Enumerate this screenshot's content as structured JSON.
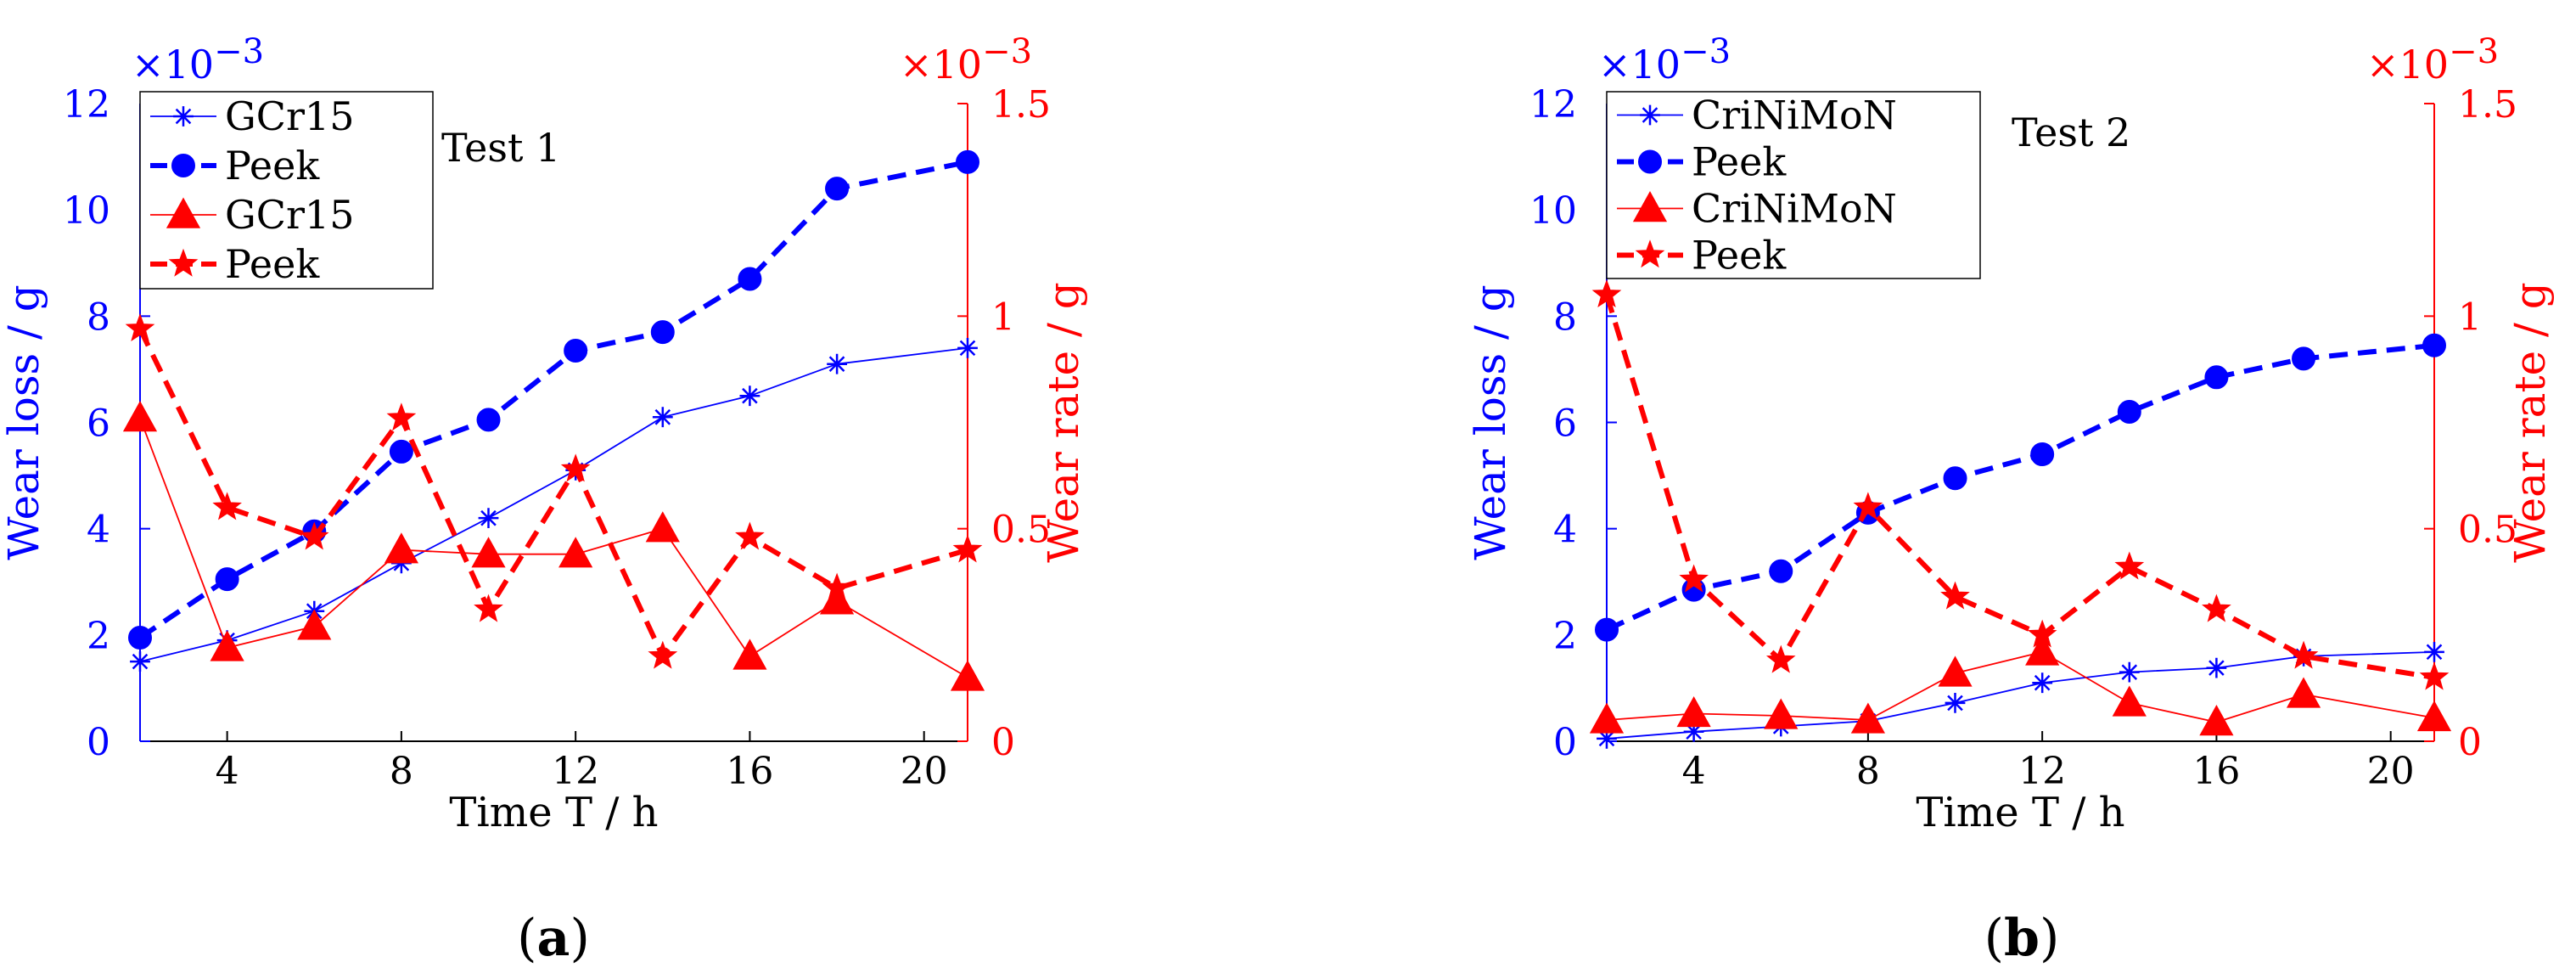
{
  "chart_data": [
    {
      "type": "line",
      "panel_label": "a",
      "annotation": "Test 1",
      "xlabel": "Time T / h",
      "ylabel_left": "Wear loss / g",
      "ylabel_right": "Wear rate / g",
      "left_multiplier": "×10",
      "left_multiplier_exp": "−3",
      "right_multiplier": "×10",
      "right_multiplier_exp": "−3",
      "xlim": [
        2,
        21
      ],
      "ylim_left": [
        0,
        12
      ],
      "ylim_right": [
        0,
        1.5
      ],
      "xticks": [
        4,
        8,
        12,
        16,
        20
      ],
      "yticks_left": [
        0,
        2,
        4,
        6,
        8,
        10,
        12
      ],
      "yticks_right": [
        0,
        0.5,
        1,
        1.5
      ],
      "legend_position": "top-left",
      "grid": false,
      "series": [
        {
          "name": "GCr15",
          "axis": "left",
          "color": "#0000ff",
          "dash": false,
          "marker": "asterisk",
          "x": [
            2,
            4,
            6,
            8,
            10,
            12,
            14,
            16,
            18,
            21
          ],
          "y": [
            1.5,
            1.9,
            2.45,
            3.35,
            4.2,
            5.1,
            6.1,
            6.5,
            7.1,
            7.4
          ]
        },
        {
          "name": "Peek",
          "axis": "left",
          "color": "#0000ff",
          "dash": true,
          "marker": "circle",
          "x": [
            2,
            4,
            6,
            8,
            10,
            12,
            14,
            16,
            18,
            21
          ],
          "y": [
            1.95,
            3.05,
            3.95,
            5.45,
            6.05,
            7.35,
            7.7,
            8.7,
            10.4,
            10.9
          ]
        },
        {
          "name": "GCr15",
          "axis": "right",
          "color": "#ff0000",
          "dash": false,
          "marker": "triangle",
          "x": [
            2,
            4,
            6,
            8,
            10,
            12,
            14,
            16,
            18,
            21
          ],
          "y": [
            0.76,
            0.22,
            0.27,
            0.45,
            0.44,
            0.44,
            0.5,
            0.2,
            0.33,
            0.15
          ]
        },
        {
          "name": "Peek",
          "axis": "right",
          "color": "#ff0000",
          "dash": true,
          "marker": "star",
          "x": [
            2,
            4,
            6,
            8,
            10,
            12,
            14,
            16,
            18,
            21
          ],
          "y": [
            0.97,
            0.55,
            0.48,
            0.76,
            0.31,
            0.64,
            0.2,
            0.48,
            0.36,
            0.45
          ]
        }
      ]
    },
    {
      "type": "line",
      "panel_label": "b",
      "annotation": "Test 2",
      "xlabel": "Time T / h",
      "ylabel_left": "Wear loss / g",
      "ylabel_right": "Wear rate / g",
      "left_multiplier": "×10",
      "left_multiplier_exp": "−3",
      "right_multiplier": "×10",
      "right_multiplier_exp": "−3",
      "xlim": [
        2,
        21
      ],
      "ylim_left": [
        0,
        12
      ],
      "ylim_right": [
        0,
        1.5
      ],
      "xticks": [
        4,
        8,
        12,
        16,
        20
      ],
      "yticks_left": [
        0,
        2,
        4,
        6,
        8,
        10,
        12
      ],
      "yticks_right": [
        0,
        0.5,
        1,
        1.5
      ],
      "legend_position": "top-left",
      "grid": false,
      "series": [
        {
          "name": "CriNiMoN",
          "axis": "left",
          "color": "#0000ff",
          "dash": false,
          "marker": "asterisk",
          "x": [
            2,
            4,
            6,
            8,
            10,
            12,
            14,
            16,
            18,
            21
          ],
          "y": [
            0.05,
            0.18,
            0.28,
            0.38,
            0.72,
            1.1,
            1.3,
            1.38,
            1.6,
            1.68
          ]
        },
        {
          "name": "Peek",
          "axis": "left",
          "color": "#0000ff",
          "dash": true,
          "marker": "circle",
          "x": [
            2,
            4,
            6,
            8,
            10,
            12,
            14,
            16,
            18,
            21
          ],
          "y": [
            2.1,
            2.85,
            3.2,
            4.3,
            4.95,
            5.4,
            6.2,
            6.85,
            7.2,
            7.45
          ]
        },
        {
          "name": "CriNiMoN",
          "axis": "right",
          "color": "#ff0000",
          "dash": false,
          "marker": "triangle",
          "x": [
            2,
            4,
            6,
            8,
            10,
            12,
            14,
            16,
            18,
            21
          ],
          "y": [
            0.05,
            0.065,
            0.06,
            0.05,
            0.16,
            0.21,
            0.09,
            0.045,
            0.11,
            0.055
          ]
        },
        {
          "name": "Peek",
          "axis": "right",
          "color": "#ff0000",
          "dash": true,
          "marker": "star",
          "x": [
            2,
            4,
            6,
            8,
            10,
            12,
            14,
            16,
            18,
            21
          ],
          "y": [
            1.05,
            0.38,
            0.19,
            0.55,
            0.34,
            0.25,
            0.41,
            0.31,
            0.2,
            0.15
          ]
        }
      ]
    }
  ]
}
